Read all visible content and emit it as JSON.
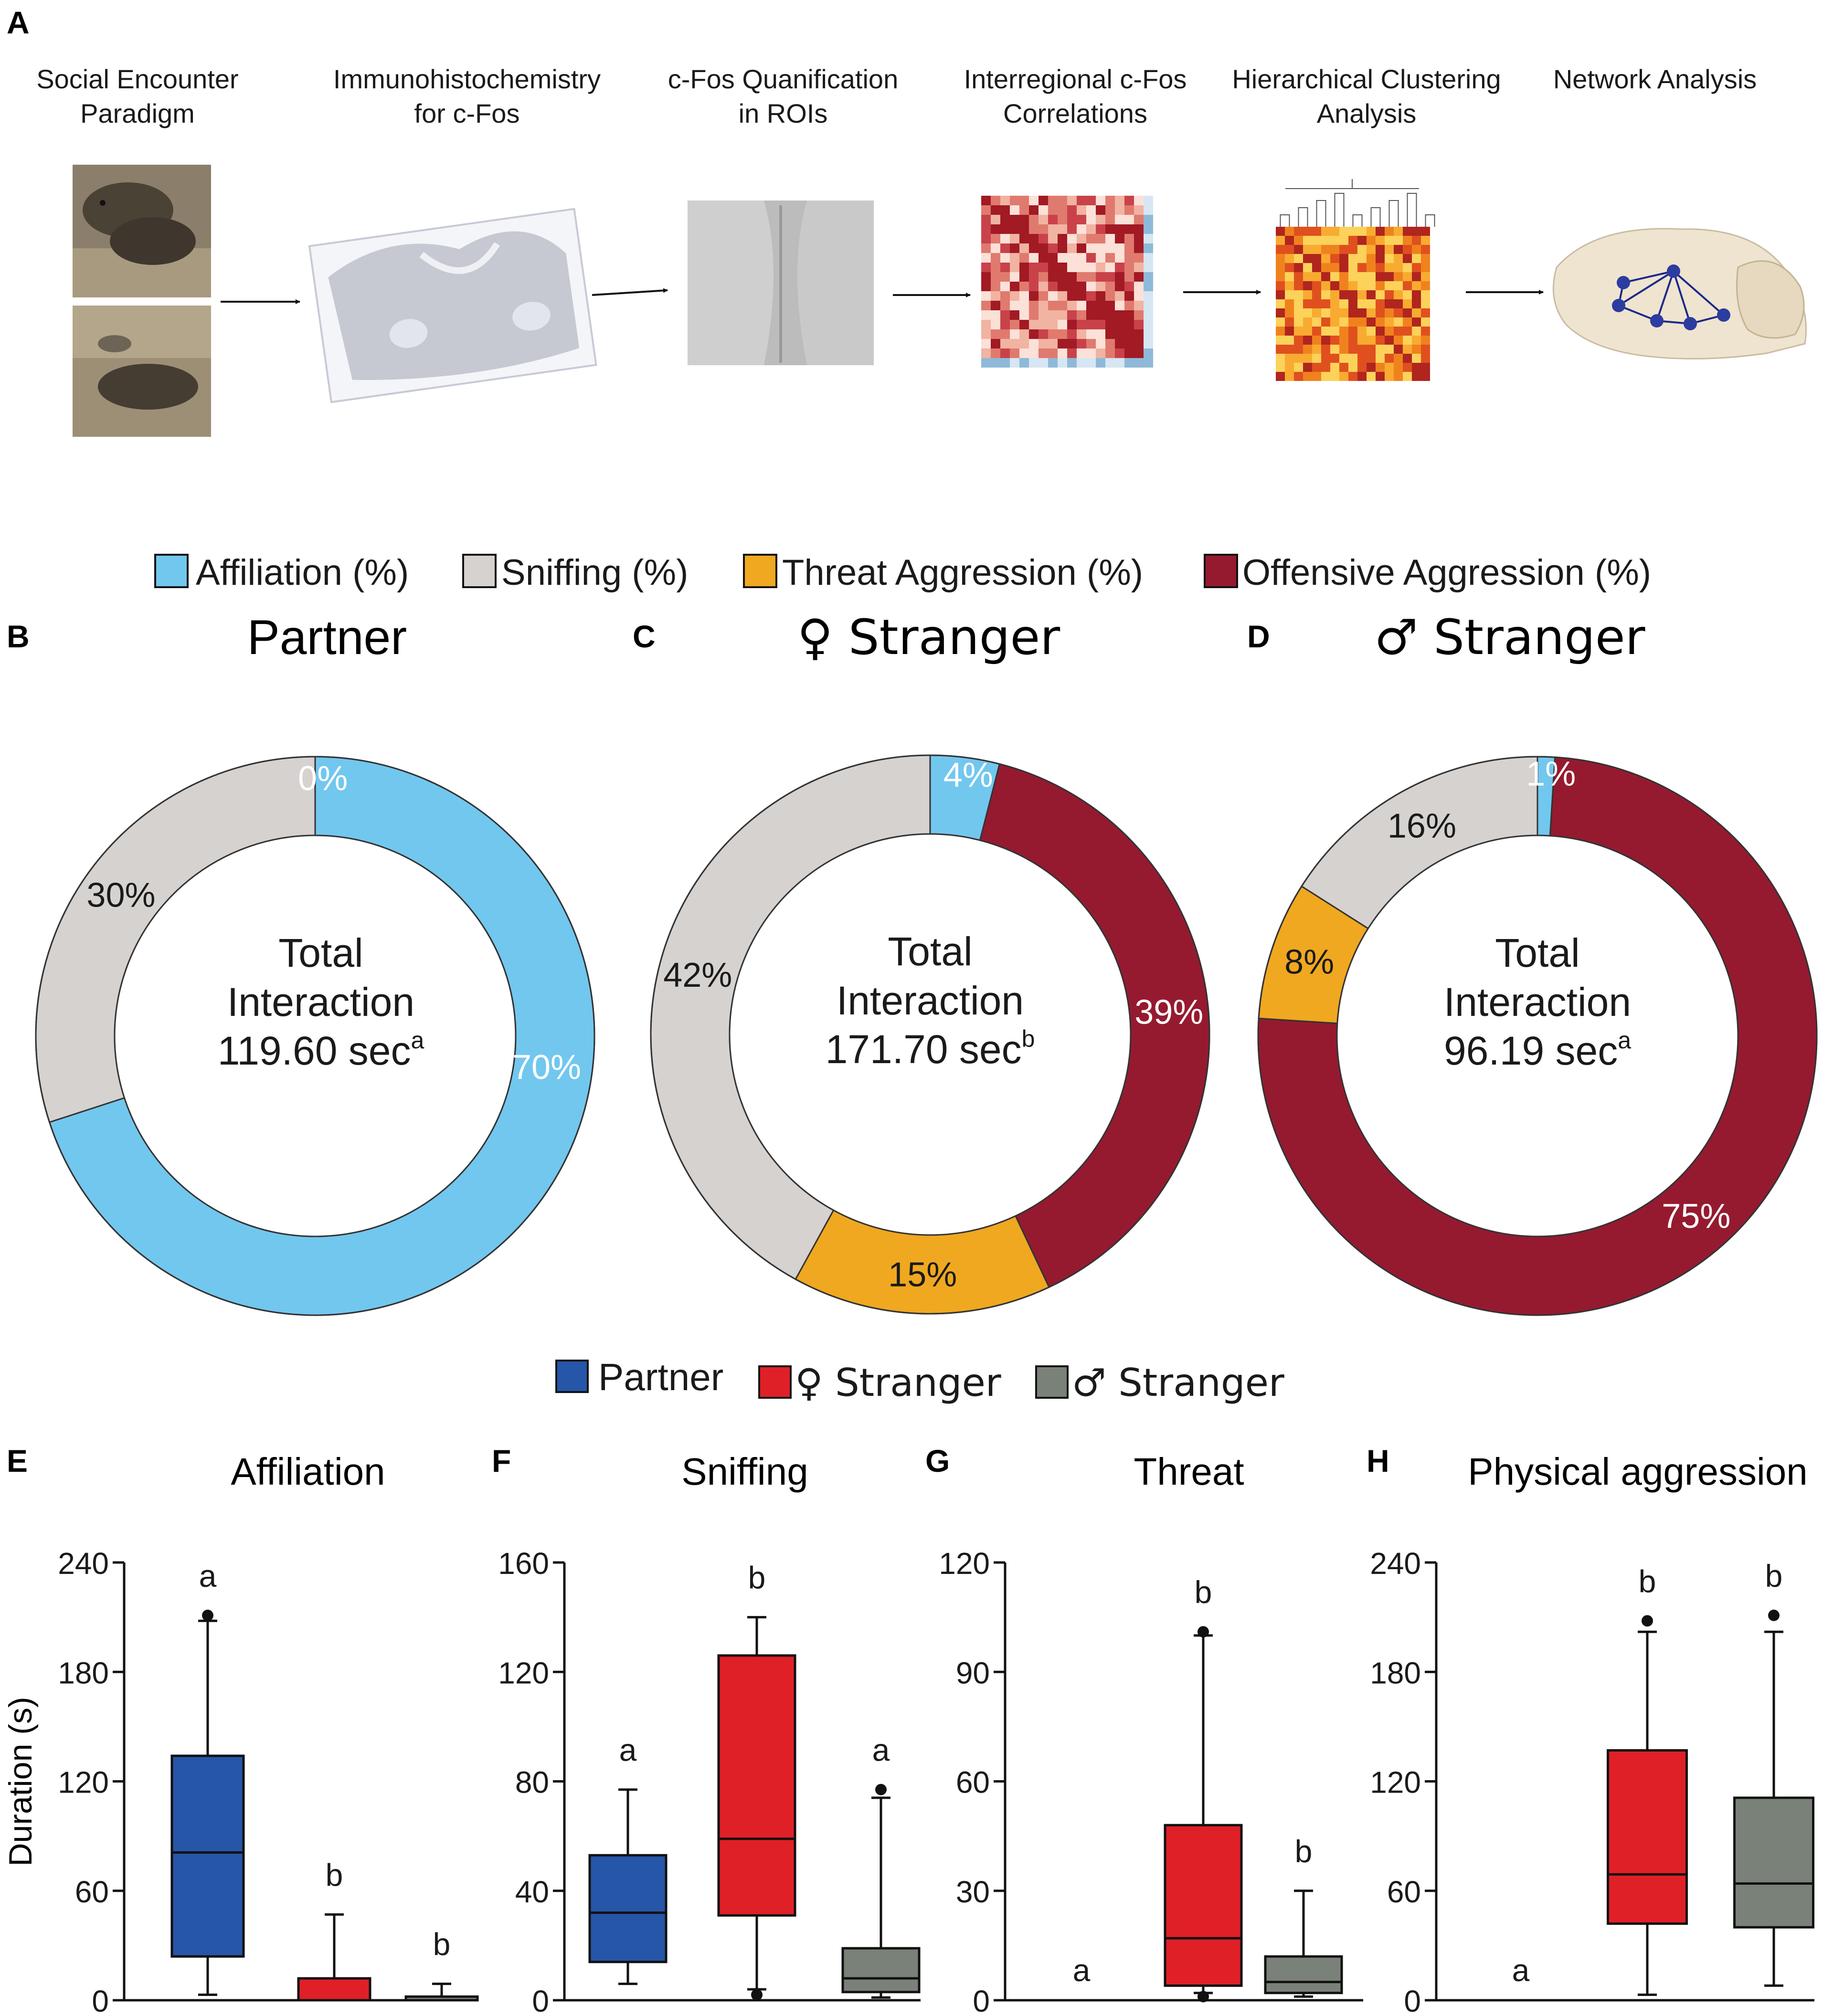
{
  "panel_letters": {
    "A": "A",
    "B": "B",
    "C": "C",
    "D": "D",
    "E": "E",
    "F": "F",
    "G": "G",
    "H": "H"
  },
  "workflow": {
    "steps": [
      {
        "line1": "Social Encounter",
        "line2": "Paradigm"
      },
      {
        "line1": "Immunohistochemistry",
        "line2": "for c-Fos"
      },
      {
        "line1": "c-Fos Quanification",
        "line2": "in ROIs"
      },
      {
        "line1": "Interregional c-Fos",
        "line2": "Correlations"
      },
      {
        "line1": "Hierarchical Clustering",
        "line2": "Analysis"
      },
      {
        "line1": "Network Analysis",
        "line2": ""
      }
    ]
  },
  "behavior_legend": [
    {
      "label": "Affiliation (%)",
      "color": "#72c7ef"
    },
    {
      "label": "Sniffing (%)",
      "color": "#d6d2cf"
    },
    {
      "label": "Threat Aggression (%)",
      "color": "#efa820"
    },
    {
      "label": "Offensive Aggression (%)",
      "color": "#951a30"
    }
  ],
  "group_legend": [
    {
      "label": "Partner",
      "color": "#2656a8"
    },
    {
      "label": "♀ Stranger",
      "color": "#e02027"
    },
    {
      "label": "♂ Stranger",
      "color": "#7a8178"
    }
  ],
  "chart_data": [
    {
      "type": "pie",
      "variant": "donut",
      "panel": "B",
      "title": "Partner",
      "center_line1": "Total",
      "center_line2": "Interaction",
      "center_value": "119.60 sec",
      "center_superscript": "a",
      "slices": [
        {
          "label": "Affiliation",
          "value": 70,
          "text": "70%"
        },
        {
          "label": "Sniffing",
          "value": 30,
          "text": "30%"
        },
        {
          "label": "Threat Aggression",
          "value": 0,
          "text": ""
        },
        {
          "label": "Offensive Aggression",
          "value": 0,
          "text": "0%"
        }
      ]
    },
    {
      "type": "pie",
      "variant": "donut",
      "panel": "C",
      "title": "♀ Stranger",
      "center_line1": "Total",
      "center_line2": "Interaction",
      "center_value": "171.70 sec",
      "center_superscript": "b",
      "slices": [
        {
          "label": "Affiliation",
          "value": 4,
          "text": "4%"
        },
        {
          "label": "Offensive Aggression",
          "value": 39,
          "text": "39%"
        },
        {
          "label": "Threat Aggression",
          "value": 15,
          "text": "15%"
        },
        {
          "label": "Sniffing",
          "value": 42,
          "text": "42%"
        }
      ]
    },
    {
      "type": "pie",
      "variant": "donut",
      "panel": "D",
      "title": "♂ Stranger",
      "center_line1": "Total",
      "center_line2": "Interaction",
      "center_value": "96.19 sec",
      "center_superscript": "a",
      "slices": [
        {
          "label": "Affiliation",
          "value": 1,
          "text": "1%"
        },
        {
          "label": "Offensive Aggression",
          "value": 75,
          "text": "75%"
        },
        {
          "label": "Threat Aggression",
          "value": 8,
          "text": "8%"
        },
        {
          "label": "Sniffing",
          "value": 16,
          "text": "16%"
        }
      ]
    },
    {
      "type": "box",
      "panel": "E",
      "title": "Affiliation",
      "ylabel": "Duration (s)",
      "ylim": [
        0,
        240
      ],
      "yticks": [
        0,
        60,
        120,
        180,
        240
      ],
      "groups": [
        {
          "name": "Partner",
          "min": 3,
          "q1": 24,
          "median": 81,
          "q3": 134,
          "max": 208,
          "outliers": [
            211
          ],
          "letter": "a"
        },
        {
          "name": "♀ Stranger",
          "min": 0,
          "q1": 0,
          "median": 0,
          "q3": 12,
          "max": 47,
          "outliers": [],
          "letter": "b"
        },
        {
          "name": "♂ Stranger",
          "min": 0,
          "q1": 0,
          "median": 0,
          "q3": 2,
          "max": 9,
          "outliers": [],
          "letter": "b"
        }
      ]
    },
    {
      "type": "box",
      "panel": "F",
      "title": "Sniffing",
      "ylabel": "",
      "ylim": [
        0,
        160
      ],
      "yticks": [
        0,
        40,
        80,
        120,
        160
      ],
      "groups": [
        {
          "name": "Partner",
          "min": 6,
          "q1": 14,
          "median": 32,
          "q3": 53,
          "max": 77,
          "outliers": [],
          "letter": "a"
        },
        {
          "name": "♀ Stranger",
          "min": 4,
          "q1": 31,
          "median": 59,
          "q3": 126,
          "max": 140,
          "outliers": [
            2
          ],
          "letter": "b"
        },
        {
          "name": "♂ Stranger",
          "min": 1,
          "q1": 3,
          "median": 8,
          "q3": 19,
          "max": 74,
          "outliers": [
            77
          ],
          "letter": "a"
        }
      ]
    },
    {
      "type": "box",
      "panel": "G",
      "title": "Threat",
      "ylabel": "",
      "ylim": [
        0,
        120
      ],
      "yticks": [
        0,
        30,
        60,
        90,
        120
      ],
      "groups": [
        {
          "name": "Partner",
          "min": 0,
          "q1": 0,
          "median": 0,
          "q3": 0,
          "max": 0,
          "outliers": [],
          "letter": "a"
        },
        {
          "name": "♀ Stranger",
          "min": 2,
          "q1": 4,
          "median": 17,
          "q3": 48,
          "max": 100,
          "outliers": [
            101,
            1
          ],
          "letter": "b"
        },
        {
          "name": "♂ Stranger",
          "min": 1,
          "q1": 2,
          "median": 5,
          "q3": 12,
          "max": 30,
          "outliers": [],
          "letter": "b"
        }
      ]
    },
    {
      "type": "box",
      "panel": "H",
      "title": "Physical aggression",
      "ylabel": "",
      "ylim": [
        0,
        240
      ],
      "yticks": [
        0,
        60,
        120,
        180,
        240
      ],
      "groups": [
        {
          "name": "Partner",
          "min": 0,
          "q1": 0,
          "median": 0,
          "q3": 0,
          "max": 0,
          "outliers": [],
          "letter": "a"
        },
        {
          "name": "♀ Stranger",
          "min": 3,
          "q1": 42,
          "median": 69,
          "q3": 137,
          "max": 202,
          "outliers": [
            208
          ],
          "letter": "b"
        },
        {
          "name": "♂ Stranger",
          "min": 8,
          "q1": 40,
          "median": 64,
          "q3": 111,
          "max": 202,
          "outliers": [
            211
          ],
          "letter": "b"
        }
      ]
    }
  ]
}
